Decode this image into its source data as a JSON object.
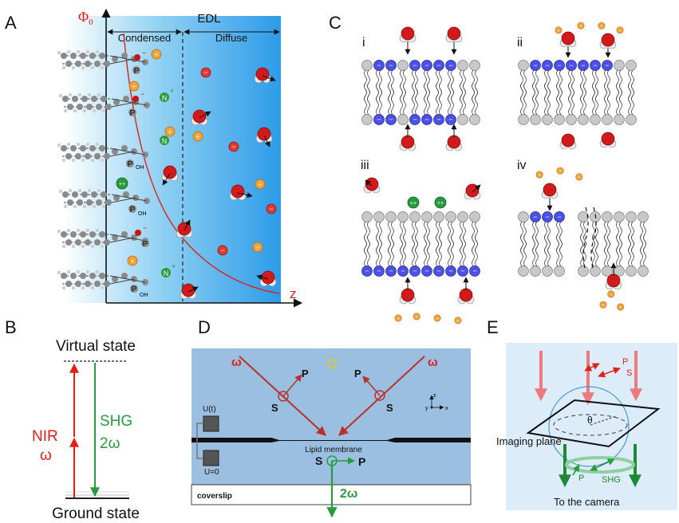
{
  "panels": {
    "A": {
      "letter": "A",
      "phi": "Φ",
      "phi_sub": "0",
      "edl": "EDL",
      "condensed": "Condensed",
      "diffuse": "Diffuse",
      "z": "z",
      "headgroups": [
        {
          "atom": "P",
          "charge": "−"
        },
        {
          "atom": "N",
          "charge": "+"
        },
        {
          "atom": "P",
          "charge": "−"
        },
        {
          "atom": "N",
          "charge": "+"
        },
        {
          "atom": "P",
          "charge": "OH"
        },
        {
          "atom": "P",
          "charge": "OH"
        },
        {
          "atom": "P",
          "charge": "−"
        },
        {
          "atom": "N",
          "charge": "+"
        },
        {
          "atom": "P",
          "charge": "OH"
        }
      ],
      "ion_plus": "+",
      "ion_minus": "−",
      "ion_2plus": "++"
    },
    "B": {
      "letter": "B",
      "virtual": "Virtual state",
      "ground": "Ground state",
      "nir": "NIR",
      "omega": "ω",
      "shg": "SHG",
      "two_omega": "2ω"
    },
    "C": {
      "letter": "C",
      "sub": [
        "i",
        "ii",
        "iii",
        "iv"
      ],
      "minus": "−",
      "plus": "+",
      "plus2": "++"
    },
    "D": {
      "letter": "D",
      "omega": "ω",
      "s": "S",
      "p": "P",
      "membrane": "Lipid membrane",
      "ut": "U(t)",
      "u0": "U=0",
      "coverslip": "coverslip",
      "two_omega": "2ω",
      "ax_z": "z",
      "ax_y": "y",
      "ax_x": "x"
    },
    "E": {
      "letter": "E",
      "p": "P",
      "s": "S",
      "theta": "θ",
      "imaging": "Imaging plane",
      "shg": "SHG",
      "camera": "To the camera"
    }
  },
  "colors": {
    "red": "#e0201b",
    "green": "#2a9a3e",
    "blue_head": "#3b3fe0",
    "panel_d_bg": "#9bbfe0",
    "panel_e_bg": "#dcedf9"
  }
}
